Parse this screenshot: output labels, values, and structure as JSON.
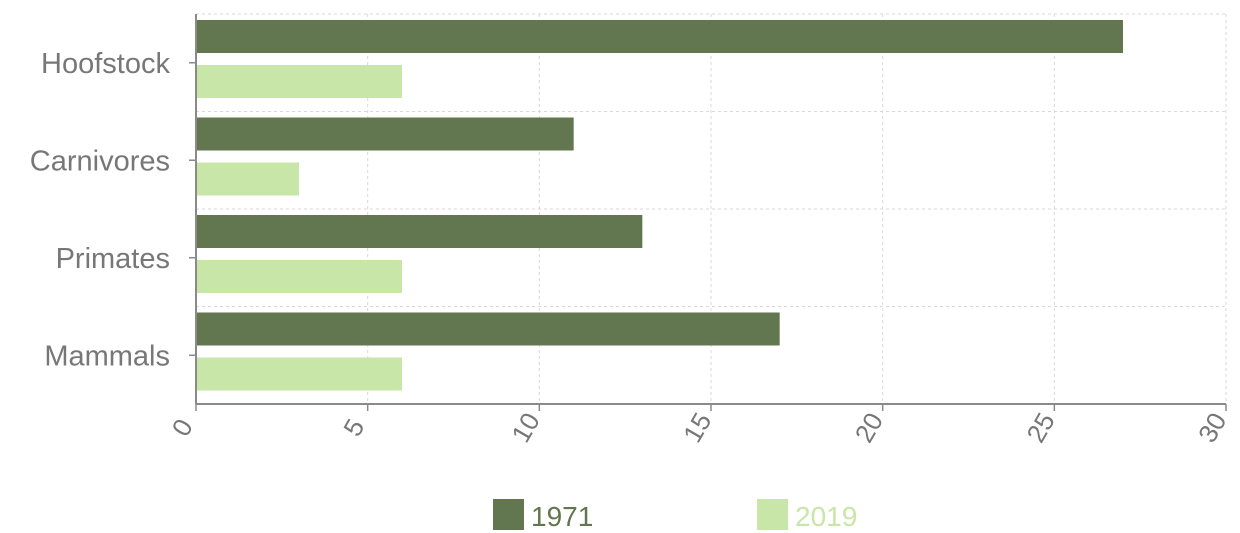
{
  "chart_data": {
    "type": "bar",
    "orientation": "horizontal",
    "categories": [
      "Hoofstock",
      "Carnivores",
      "Primates",
      "Mammals"
    ],
    "series": [
      {
        "name": "1971",
        "values": [
          27,
          11,
          13,
          17
        ],
        "color": "#62764f"
      },
      {
        "name": "2019",
        "values": [
          6,
          3,
          6,
          6
        ],
        "color": "#c8e6a8"
      }
    ],
    "x_ticks": [
      "0",
      "5",
      "10",
      "15",
      "20",
      "25",
      "30"
    ],
    "xlim": [
      0,
      30
    ],
    "grid": true,
    "legend_position": "bottom-center"
  }
}
